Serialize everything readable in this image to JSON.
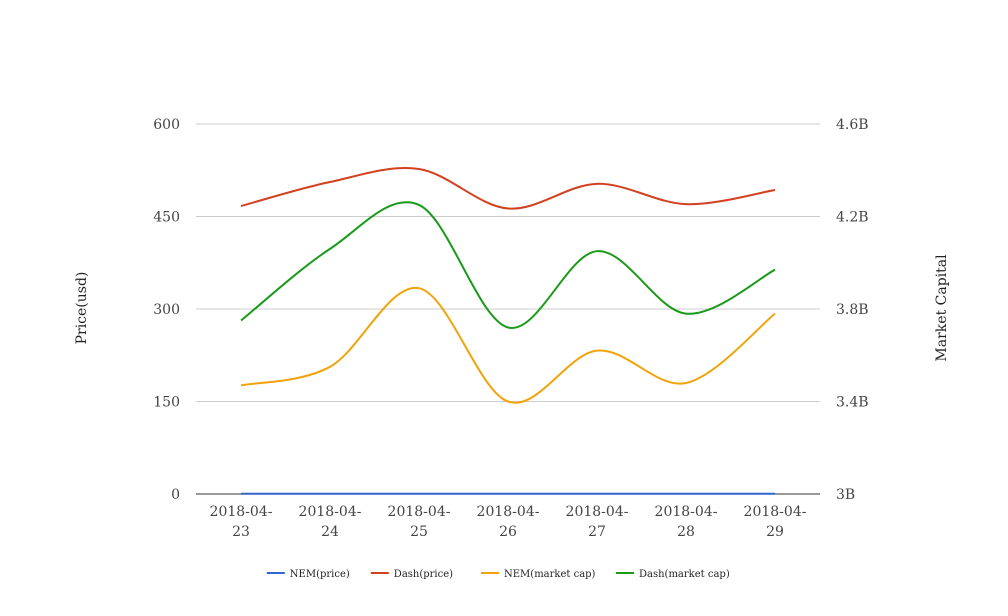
{
  "chart_data": {
    "type": "line",
    "categories": [
      [
        "2018-04-",
        "23"
      ],
      [
        "2018-04-",
        "24"
      ],
      [
        "2018-04-",
        "25"
      ],
      [
        "2018-04-",
        "26"
      ],
      [
        "2018-04-",
        "27"
      ],
      [
        "2018-04-",
        "28"
      ],
      [
        "2018-04-",
        "29"
      ]
    ],
    "left_axis": {
      "title": "Price(usd)",
      "ticks": [
        "600",
        "450",
        "300",
        "150",
        "0"
      ],
      "tick_values": [
        600,
        450,
        300,
        150,
        0
      ],
      "range": [
        0,
        600
      ]
    },
    "right_axis": {
      "title": "Market Capital",
      "ticks": [
        "4.6B",
        "4.2B",
        "3.8B",
        "3.4B",
        "3B"
      ],
      "tick_values": [
        4600000000,
        4200000000,
        3800000000,
        3400000000,
        3000000000
      ],
      "range": [
        3000000000,
        4600000000
      ]
    },
    "series": [
      {
        "name": "NEM(price)",
        "axis": "left",
        "color": "#3366cc",
        "values": [
          0.4,
          0.4,
          0.4,
          0.4,
          0.4,
          0.4,
          0.4
        ]
      },
      {
        "name": "Dash(price)",
        "axis": "left",
        "color": "#d2411f",
        "values": [
          467,
          506,
          527,
          463,
          503,
          470,
          493
        ]
      },
      {
        "name": "NEM(market cap)",
        "axis": "right",
        "color": "#f0a30a",
        "values": [
          3470000000,
          3550000000,
          3890000000,
          3400000000,
          3620000000,
          3480000000,
          3780000000
        ]
      },
      {
        "name": "Dash(market cap)",
        "axis": "right",
        "color": "#1a9a1a",
        "values": [
          3750000000,
          4060000000,
          4250000000,
          3720000000,
          4050000000,
          3780000000,
          3970000000
        ]
      }
    ],
    "grid": true,
    "legend_position": "bottom"
  }
}
